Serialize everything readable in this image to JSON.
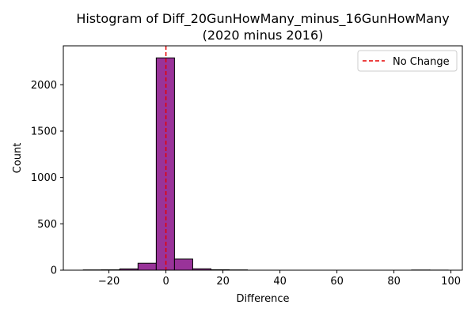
{
  "chart_data": {
    "type": "bar",
    "title": "Histogram of Diff_20GunHowMany_minus_16GunHowMany",
    "subtitle": "(2020 minus 2016)",
    "xlabel": "Difference",
    "ylabel": "Count",
    "xlim": [
      -36,
      104
    ],
    "ylim": [
      0,
      2420
    ],
    "x_ticks": [
      -20,
      0,
      20,
      40,
      60,
      80,
      100
    ],
    "y_ticks": [
      0,
      500,
      1000,
      1500,
      2000
    ],
    "x_tick_labels": [
      "−20",
      "0",
      "20",
      "40",
      "60",
      "80",
      "100"
    ],
    "y_tick_labels": [
      "0",
      "500",
      "1000",
      "1500",
      "2000"
    ],
    "bin_edges": [
      -29,
      -22.6,
      -16.2,
      -9.8,
      -3.4,
      3.0,
      9.4,
      15.8,
      22.2,
      28.6,
      35.0,
      41.4,
      47.8,
      54.2,
      60.6,
      67.0,
      73.4,
      79.8,
      86.2,
      92.6,
      99.0
    ],
    "values": [
      3,
      4,
      14,
      75,
      2290,
      120,
      15,
      5,
      3,
      0,
      0,
      0,
      0,
      0,
      0,
      0,
      0,
      0,
      2,
      1
    ],
    "bar_color": "#993399",
    "bar_edge_color": "#000000",
    "reference_line": {
      "x": 0,
      "label": "No Change",
      "color": "#e50000",
      "style": "dashed"
    },
    "legend": {
      "placement": "top-right",
      "entries": [
        "No Change"
      ]
    },
    "grid": false
  }
}
